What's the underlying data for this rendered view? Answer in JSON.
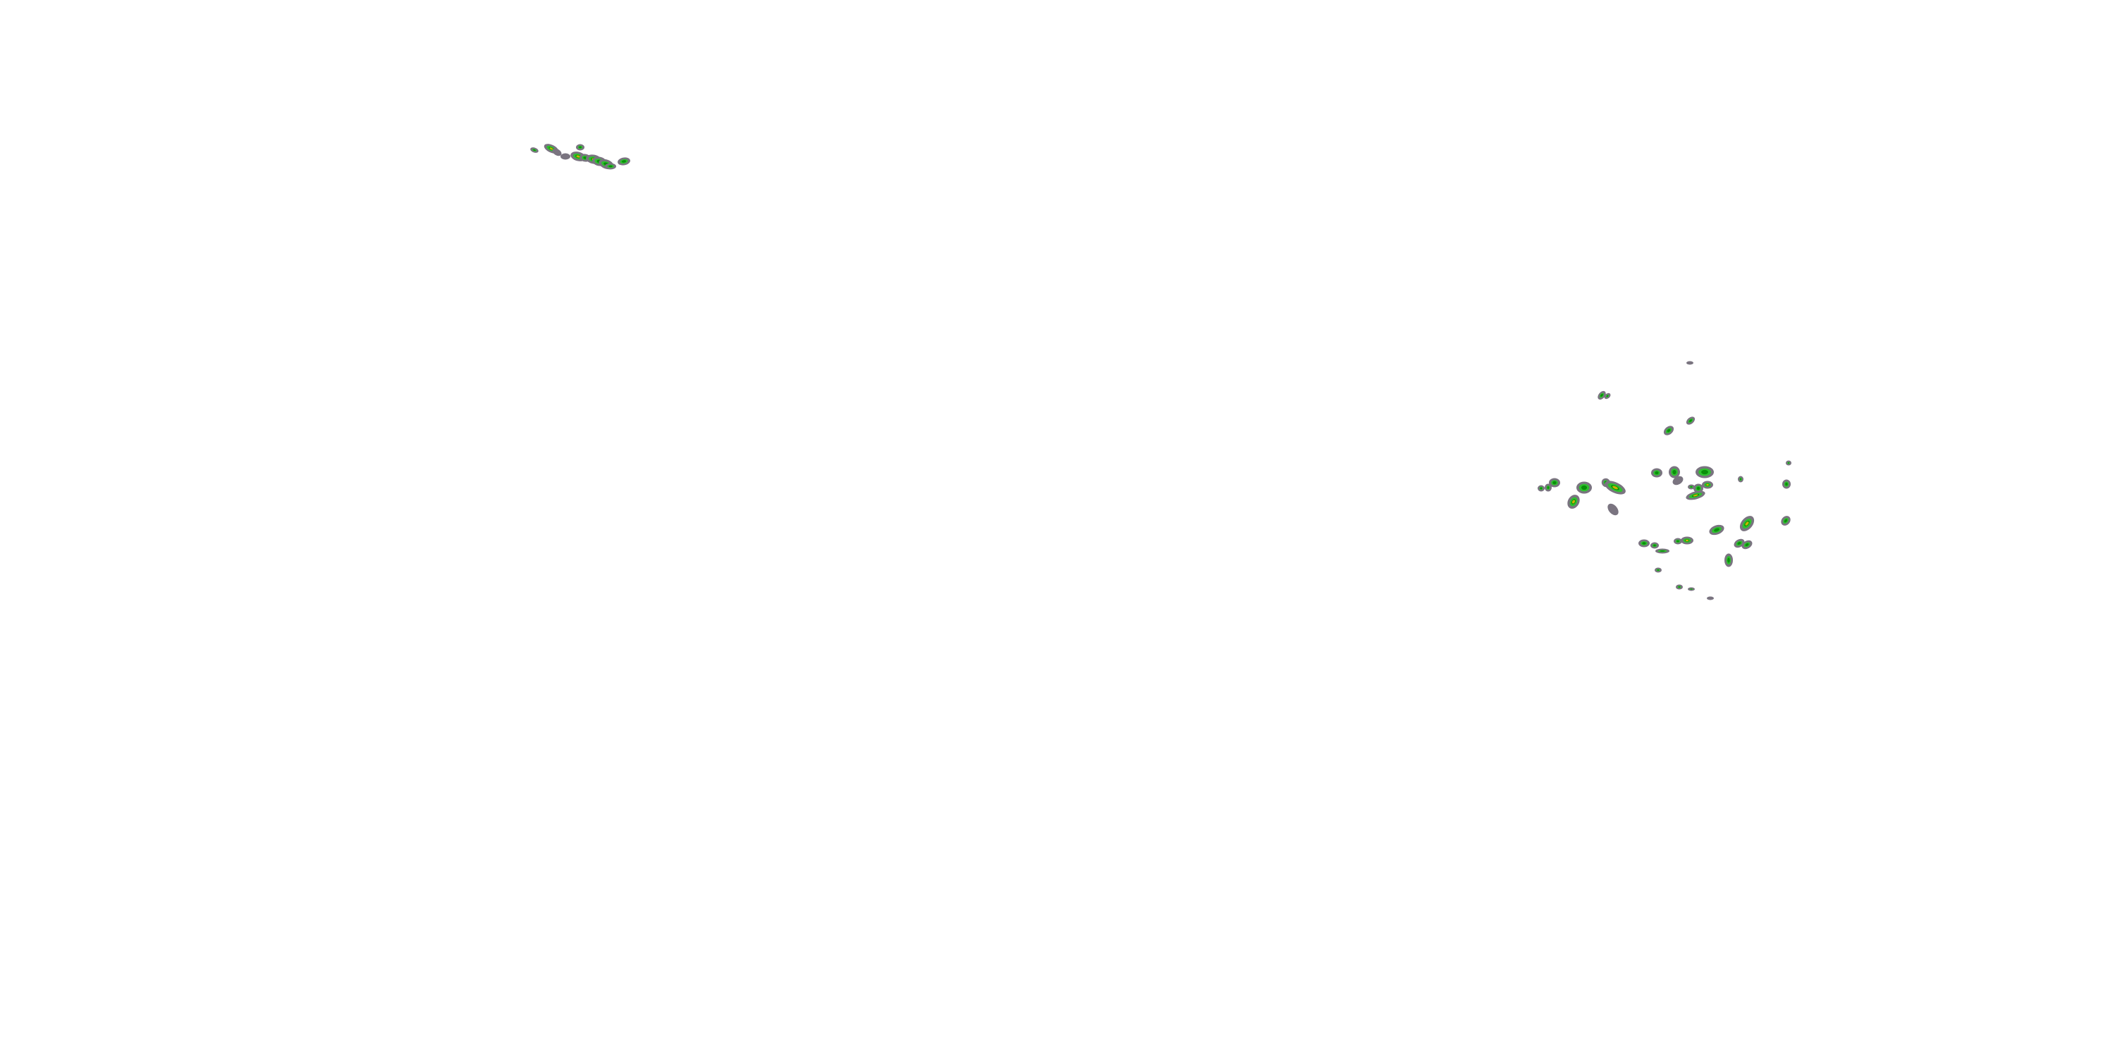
{
  "map": {
    "layer": "precipitation-radar",
    "colors": {
      "background": "#ffffff",
      "light": "#7a7480",
      "moderate": "#2fc12f",
      "heavy": "#0a8f0a",
      "intense": "#c8b400"
    }
  }
}
